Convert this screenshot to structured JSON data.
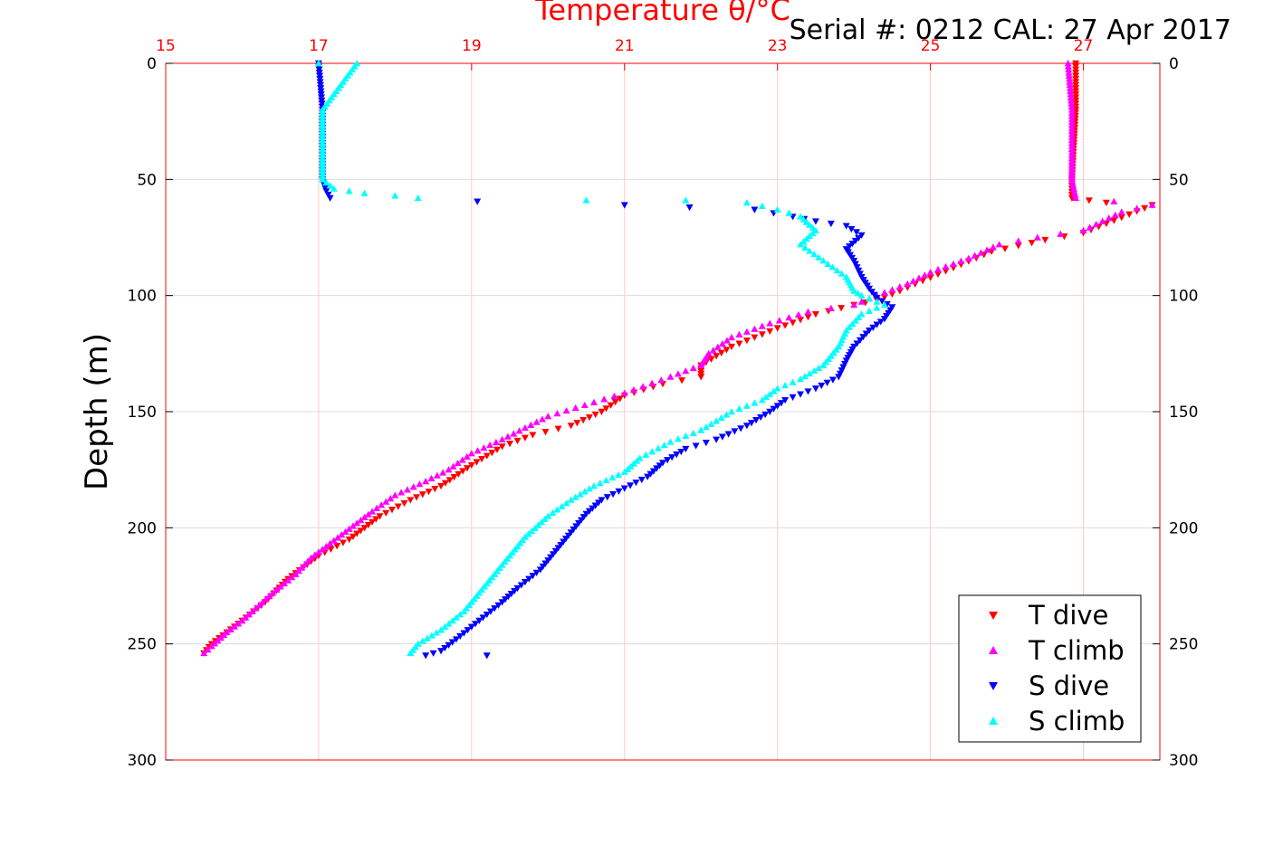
{
  "chart_data": {
    "type": "scatter",
    "xlabel": "Temperature θ/°C",
    "ylabel": "Depth (m)",
    "annotation": "Serial #: 0212  CAL: 27 Apr 2017",
    "xlim": [
      15,
      28
    ],
    "ylim": [
      0,
      300
    ],
    "y_reversed": true,
    "x_ticks": [
      "15",
      "17",
      "19",
      "21",
      "23",
      "25",
      "27"
    ],
    "y_ticks": [
      "0",
      "50",
      "100",
      "150",
      "200",
      "250",
      "300"
    ],
    "grid": true,
    "legend_position": "bottom-right",
    "series": [
      {
        "name": "T dive",
        "color": "#ff0000",
        "marker": "triangle-down",
        "points": [
          [
            26.9,
            0
          ],
          [
            26.9,
            20
          ],
          [
            26.85,
            50
          ],
          [
            26.85,
            58
          ],
          [
            27.3,
            60
          ],
          [
            27.9,
            61
          ],
          [
            27.6,
            65
          ],
          [
            27.0,
            73
          ],
          [
            26.5,
            76
          ],
          [
            25.8,
            81
          ],
          [
            25.3,
            88
          ],
          [
            24.8,
            95
          ],
          [
            24.6,
            98
          ],
          [
            24.3,
            102
          ],
          [
            24.0,
            104
          ],
          [
            23.5,
            108
          ],
          [
            23.0,
            114
          ],
          [
            22.4,
            122
          ],
          [
            22.0,
            130
          ],
          [
            22.0,
            135
          ],
          [
            21.5,
            138
          ],
          [
            21.0,
            143
          ],
          [
            20.7,
            150
          ],
          [
            20.3,
            156
          ],
          [
            19.8,
            160
          ],
          [
            19.4,
            165
          ],
          [
            19.0,
            173
          ],
          [
            18.6,
            182
          ],
          [
            18.2,
            188
          ],
          [
            17.8,
            195
          ],
          [
            17.4,
            205
          ],
          [
            17.0,
            212
          ],
          [
            16.6,
            222
          ],
          [
            16.3,
            232
          ],
          [
            16.0,
            240
          ],
          [
            15.8,
            245
          ],
          [
            15.6,
            250
          ],
          [
            15.5,
            254
          ]
        ]
      },
      {
        "name": "T climb",
        "color": "#ff00ff",
        "marker": "triangle-up",
        "points": [
          [
            26.8,
            0
          ],
          [
            26.85,
            20
          ],
          [
            26.85,
            50
          ],
          [
            26.9,
            58
          ],
          [
            27.9,
            61
          ],
          [
            27.5,
            64
          ],
          [
            27.0,
            72
          ],
          [
            26.4,
            75
          ],
          [
            25.9,
            78
          ],
          [
            25.5,
            84
          ],
          [
            25.0,
            90
          ],
          [
            24.7,
            95
          ],
          [
            24.3,
            100
          ],
          [
            24.0,
            104
          ],
          [
            23.4,
            107
          ],
          [
            22.9,
            112
          ],
          [
            22.4,
            118
          ],
          [
            22.1,
            125
          ],
          [
            22.0,
            130
          ],
          [
            21.6,
            135
          ],
          [
            21.0,
            142
          ],
          [
            20.6,
            146
          ],
          [
            20.0,
            152
          ],
          [
            19.4,
            162
          ],
          [
            19.0,
            168
          ],
          [
            18.7,
            175
          ],
          [
            18.4,
            180
          ],
          [
            18.0,
            186
          ],
          [
            17.7,
            193
          ],
          [
            17.3,
            203
          ],
          [
            16.9,
            213
          ],
          [
            16.7,
            220
          ],
          [
            16.4,
            228
          ],
          [
            16.0,
            240
          ],
          [
            15.8,
            245
          ],
          [
            15.6,
            251
          ],
          [
            15.5,
            254
          ]
        ]
      },
      {
        "name": "S dive",
        "color": "#0000ff",
        "marker": "triangle-down",
        "points": [
          [
            17.0,
            0
          ],
          [
            17.05,
            20
          ],
          [
            17.05,
            50
          ],
          [
            17.1,
            55
          ],
          [
            17.15,
            58
          ],
          [
            21.0,
            61
          ],
          [
            22.7,
            63
          ],
          [
            23.2,
            66
          ],
          [
            23.5,
            68
          ],
          [
            23.9,
            70
          ],
          [
            24.1,
            74
          ],
          [
            23.9,
            80
          ],
          [
            24.0,
            85
          ],
          [
            24.1,
            92
          ],
          [
            24.2,
            97
          ],
          [
            24.3,
            101
          ],
          [
            24.5,
            105
          ],
          [
            24.4,
            110
          ],
          [
            24.2,
            115
          ],
          [
            24.0,
            122
          ],
          [
            23.9,
            128
          ],
          [
            23.8,
            135
          ],
          [
            23.5,
            140
          ],
          [
            23.1,
            145
          ],
          [
            22.9,
            150
          ],
          [
            22.6,
            156
          ],
          [
            22.2,
            162
          ],
          [
            21.8,
            166
          ],
          [
            21.5,
            172
          ],
          [
            21.3,
            178
          ],
          [
            21.0,
            183
          ],
          [
            20.7,
            188
          ],
          [
            20.5,
            194
          ],
          [
            20.3,
            202
          ],
          [
            20.1,
            210
          ],
          [
            19.9,
            218
          ],
          [
            19.6,
            226
          ],
          [
            19.4,
            232
          ],
          [
            19.1,
            240
          ],
          [
            18.8,
            248
          ],
          [
            18.6,
            253
          ],
          [
            18.4,
            255
          ],
          [
            19.2,
            255
          ]
        ]
      },
      {
        "name": "S climb",
        "color": "#00ffff",
        "marker": "triangle-up",
        "points": [
          [
            17.0,
            0
          ],
          [
            17.5,
            0
          ],
          [
            17.05,
            20
          ],
          [
            17.05,
            50
          ],
          [
            17.2,
            54
          ],
          [
            17.6,
            56
          ],
          [
            18.0,
            57
          ],
          [
            18.3,
            58
          ],
          [
            20.5,
            59
          ],
          [
            21.8,
            59
          ],
          [
            22.6,
            60
          ],
          [
            23.0,
            63
          ],
          [
            23.3,
            66
          ],
          [
            23.5,
            72
          ],
          [
            23.3,
            78
          ],
          [
            23.6,
            85
          ],
          [
            23.9,
            92
          ],
          [
            24.0,
            98
          ],
          [
            24.1,
            100
          ],
          [
            24.4,
            104
          ],
          [
            24.1,
            108
          ],
          [
            23.9,
            115
          ],
          [
            23.8,
            122
          ],
          [
            23.6,
            130
          ],
          [
            23.3,
            136
          ],
          [
            23.0,
            140
          ],
          [
            22.8,
            145
          ],
          [
            22.4,
            150
          ],
          [
            22.0,
            158
          ],
          [
            21.6,
            163
          ],
          [
            21.2,
            170
          ],
          [
            21.0,
            176
          ],
          [
            20.6,
            182
          ],
          [
            20.3,
            188
          ],
          [
            20.0,
            195
          ],
          [
            19.7,
            204
          ],
          [
            19.5,
            212
          ],
          [
            19.3,
            220
          ],
          [
            19.1,
            228
          ],
          [
            18.9,
            236
          ],
          [
            18.6,
            244
          ],
          [
            18.3,
            250
          ],
          [
            18.2,
            254
          ]
        ]
      }
    ]
  },
  "colors": {
    "x_axis": "#ff0000",
    "y_axis": "#000000",
    "grid": "#ffc8c8"
  }
}
